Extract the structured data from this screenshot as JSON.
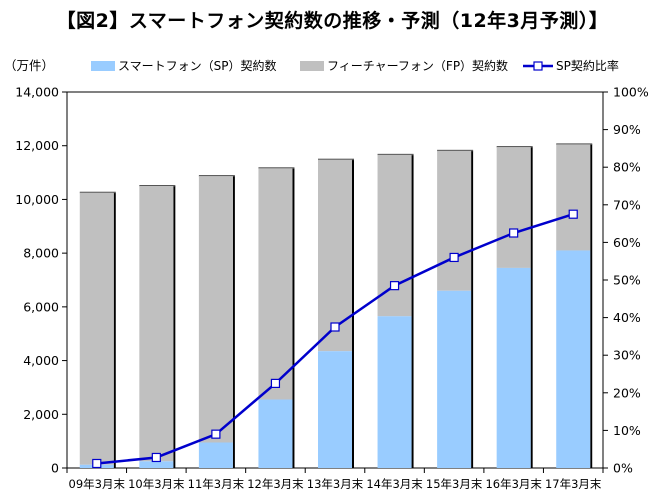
{
  "title": "【図2】スマートフォン契約数の推移・予測（12年3月予測）】",
  "chart_data": {
    "type": "bar",
    "stacked": true,
    "categories": [
      "09年3月末",
      "10年3月末",
      "11年3月末",
      "12年3月末",
      "13年3月末",
      "14年3月末",
      "15年3月末",
      "16年3月末",
      "17年3月末"
    ],
    "series": [
      {
        "name": "スマートフォン（SP）契約数",
        "type": "bar",
        "axis": "left",
        "values": [
          120,
          250,
          950,
          2550,
          4350,
          5650,
          6600,
          7450,
          8100
        ],
        "color": "#99ccff"
      },
      {
        "name": "フィーチャーフォン（FP）契約数",
        "type": "bar",
        "axis": "left",
        "values": [
          10130,
          10250,
          9920,
          8610,
          7130,
          6010,
          5210,
          4500,
          3950
        ],
        "color": "#c0c0c0"
      },
      {
        "name": "SP契約比率",
        "type": "line",
        "axis": "right",
        "values": [
          1.2,
          2.8,
          9.0,
          22.5,
          37.5,
          48.5,
          56.0,
          62.5,
          67.5
        ],
        "color": "#0000cc"
      }
    ],
    "y_left": {
      "unit_label": "（万件）",
      "range": [
        0,
        14000
      ],
      "ticks": [
        "0",
        "2,000",
        "4,000",
        "6,000",
        "8,000",
        "10,000",
        "12,000",
        "14,000"
      ]
    },
    "y_right": {
      "range": [
        0,
        100
      ],
      "ticks": [
        "0%",
        "10%",
        "20%",
        "30%",
        "40%",
        "50%",
        "60%",
        "70%",
        "80%",
        "90%",
        "100%"
      ]
    },
    "grid": false,
    "legend_position": "top"
  }
}
